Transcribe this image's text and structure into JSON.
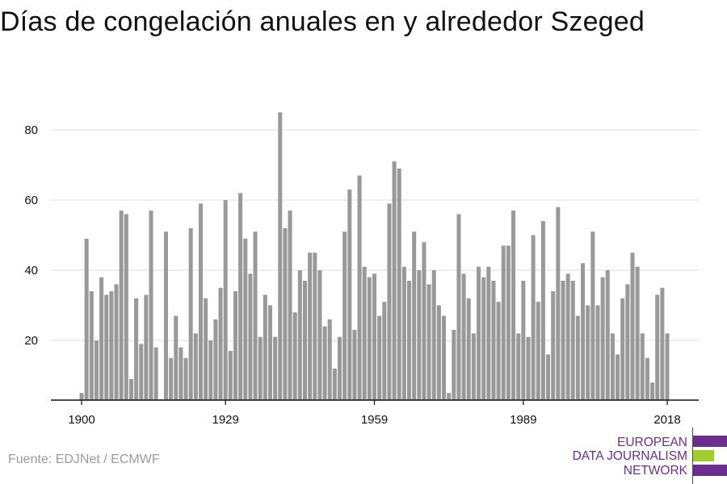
{
  "title": "Días de congelación anuales en y alrededor Szeged",
  "source": "Fuente: EDJNet / ECMWF",
  "logo": {
    "lines": [
      "EUROPEAN",
      "DATA JOURNALISM",
      "NETWORK"
    ],
    "colors": {
      "purple": "#6b2e8f",
      "green": "#9fcf2f"
    }
  },
  "colors": {
    "bar": "#999999",
    "grid": "#dddddd",
    "axis": "#111111",
    "text": "#111111"
  },
  "chart_data": {
    "type": "bar",
    "title": "Días de congelación anuales en y alrededor Szeged",
    "xlabel": "",
    "ylabel": "",
    "ylim": [
      3,
      88
    ],
    "yticks": [
      20,
      40,
      60,
      80
    ],
    "xticks": [
      1900,
      1929,
      1959,
      1989,
      2018
    ],
    "grid": "horizontal",
    "x": [
      1900,
      1901,
      1902,
      1903,
      1904,
      1905,
      1906,
      1907,
      1908,
      1909,
      1910,
      1911,
      1912,
      1913,
      1914,
      1915,
      1916,
      1917,
      1918,
      1919,
      1920,
      1921,
      1922,
      1923,
      1924,
      1925,
      1926,
      1927,
      1928,
      1929,
      1930,
      1931,
      1932,
      1933,
      1934,
      1935,
      1936,
      1937,
      1938,
      1939,
      1940,
      1941,
      1942,
      1943,
      1944,
      1945,
      1946,
      1947,
      1948,
      1949,
      1950,
      1951,
      1952,
      1953,
      1954,
      1955,
      1956,
      1957,
      1958,
      1959,
      1960,
      1961,
      1962,
      1963,
      1964,
      1965,
      1966,
      1967,
      1968,
      1969,
      1970,
      1971,
      1972,
      1973,
      1974,
      1975,
      1976,
      1977,
      1978,
      1979,
      1980,
      1981,
      1982,
      1983,
      1984,
      1985,
      1986,
      1987,
      1988,
      1989,
      1990,
      1991,
      1992,
      1993,
      1994,
      1995,
      1996,
      1997,
      1998,
      1999,
      2000,
      2001,
      2002,
      2003,
      2004,
      2005,
      2006,
      2007,
      2008,
      2009,
      2010,
      2011,
      2012,
      2013,
      2014,
      2015,
      2016,
      2017,
      2018
    ],
    "values": [
      5,
      49,
      34,
      20,
      38,
      33,
      34,
      36,
      57,
      56,
      9,
      32,
      19,
      33,
      57,
      18,
      3,
      51,
      15,
      27,
      18,
      15,
      52,
      22,
      59,
      32,
      20,
      26,
      35,
      60,
      17,
      34,
      62,
      49,
      39,
      51,
      21,
      33,
      30,
      21,
      85,
      52,
      57,
      28,
      40,
      37,
      45,
      45,
      40,
      24,
      26,
      12,
      21,
      51,
      63,
      23,
      67,
      41,
      38,
      39,
      27,
      31,
      59,
      71,
      69,
      41,
      37,
      51,
      40,
      48,
      36,
      40,
      30,
      27,
      5,
      23,
      56,
      39,
      32,
      22,
      41,
      38,
      41,
      37,
      31,
      47,
      47,
      57,
      22,
      37,
      21,
      50,
      31,
      54,
      16,
      34,
      58,
      37,
      39,
      37,
      27,
      42,
      30,
      51,
      30,
      38,
      40,
      22,
      16,
      32,
      36,
      45,
      41,
      22,
      15,
      8,
      33,
      35,
      22
    ]
  }
}
